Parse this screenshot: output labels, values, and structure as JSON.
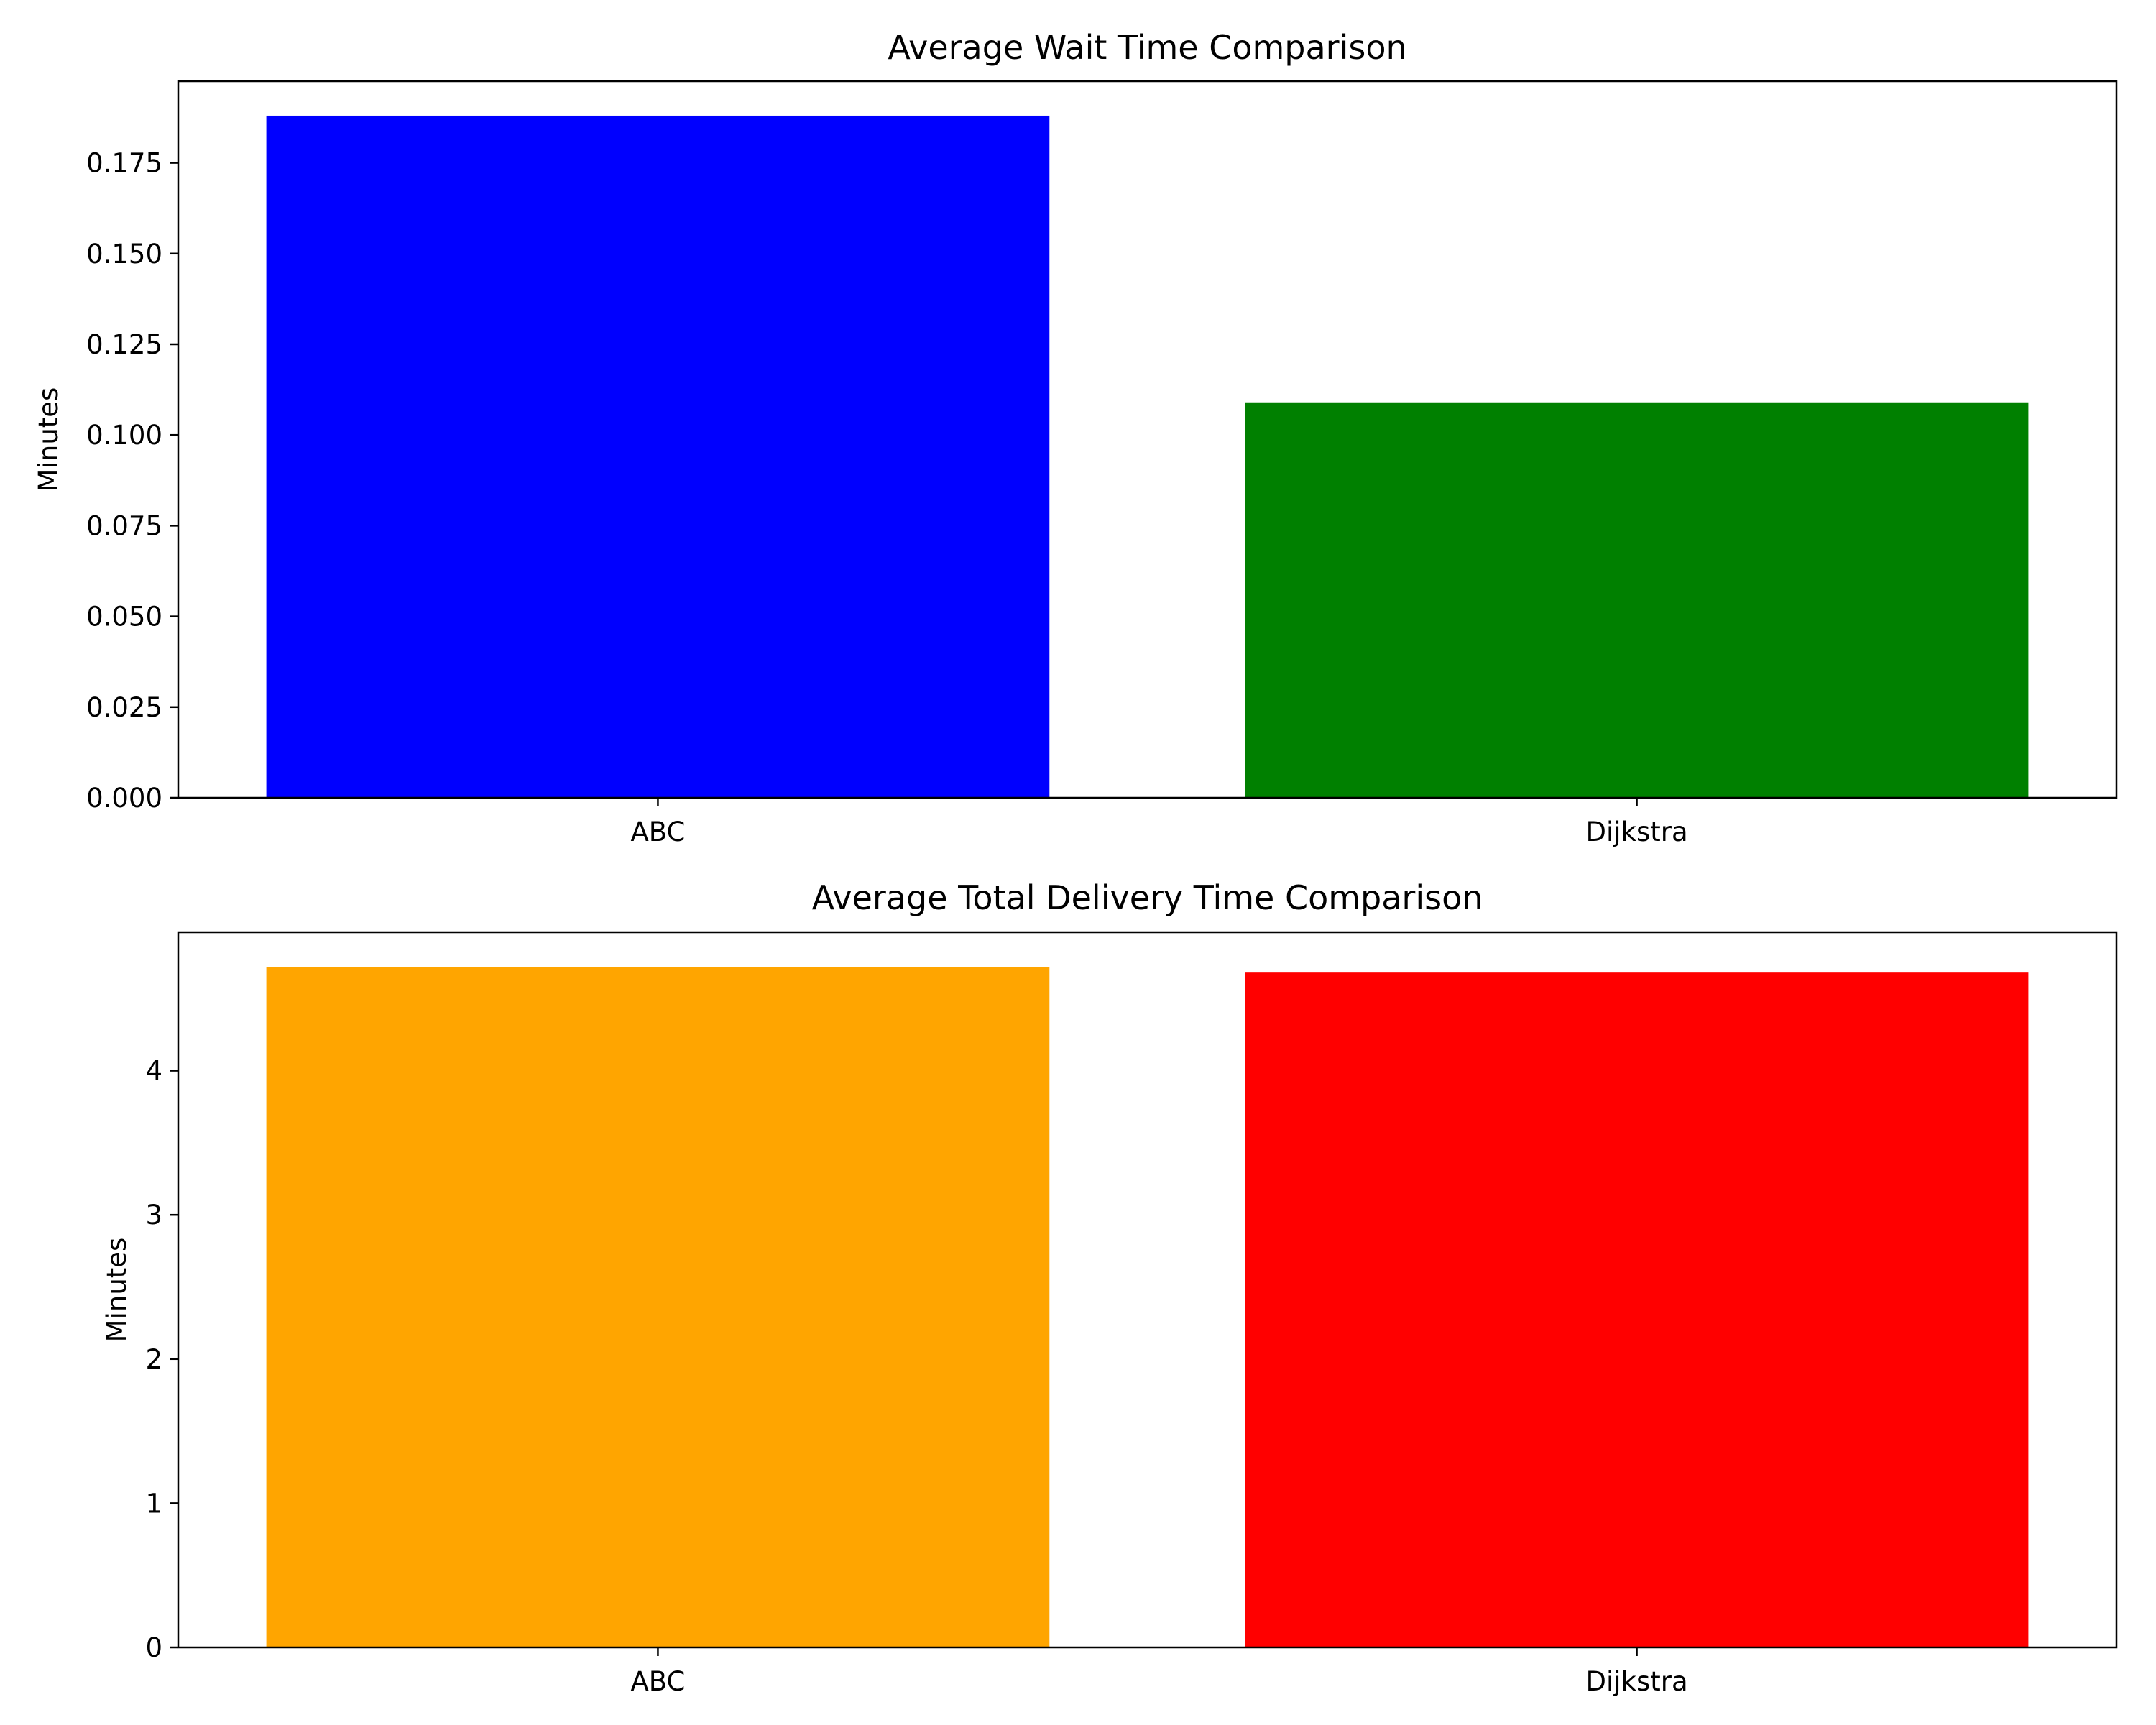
{
  "chart_data": [
    {
      "type": "bar",
      "title": "Average Wait Time Comparison",
      "xlabel": "",
      "ylabel": "Minutes",
      "categories": [
        "ABC",
        "Dijkstra"
      ],
      "values": [
        0.188,
        0.109
      ],
      "colors": [
        "#0000ff",
        "#008000"
      ],
      "ylim": [
        0,
        0.1975
      ],
      "yticks": [
        "0.000",
        "0.025",
        "0.050",
        "0.075",
        "0.100",
        "0.125",
        "0.150",
        "0.175"
      ],
      "grid": false
    },
    {
      "type": "bar",
      "title": "Average Total Delivery Time Comparison",
      "xlabel": "",
      "ylabel": "Minutes",
      "categories": [
        "ABC",
        "Dijkstra"
      ],
      "values": [
        4.72,
        4.68
      ],
      "colors": [
        "#ffa500",
        "#ff0000"
      ],
      "ylim": [
        0,
        4.96
      ],
      "yticks": [
        "0",
        "1",
        "2",
        "3",
        "4"
      ],
      "grid": false
    }
  ]
}
